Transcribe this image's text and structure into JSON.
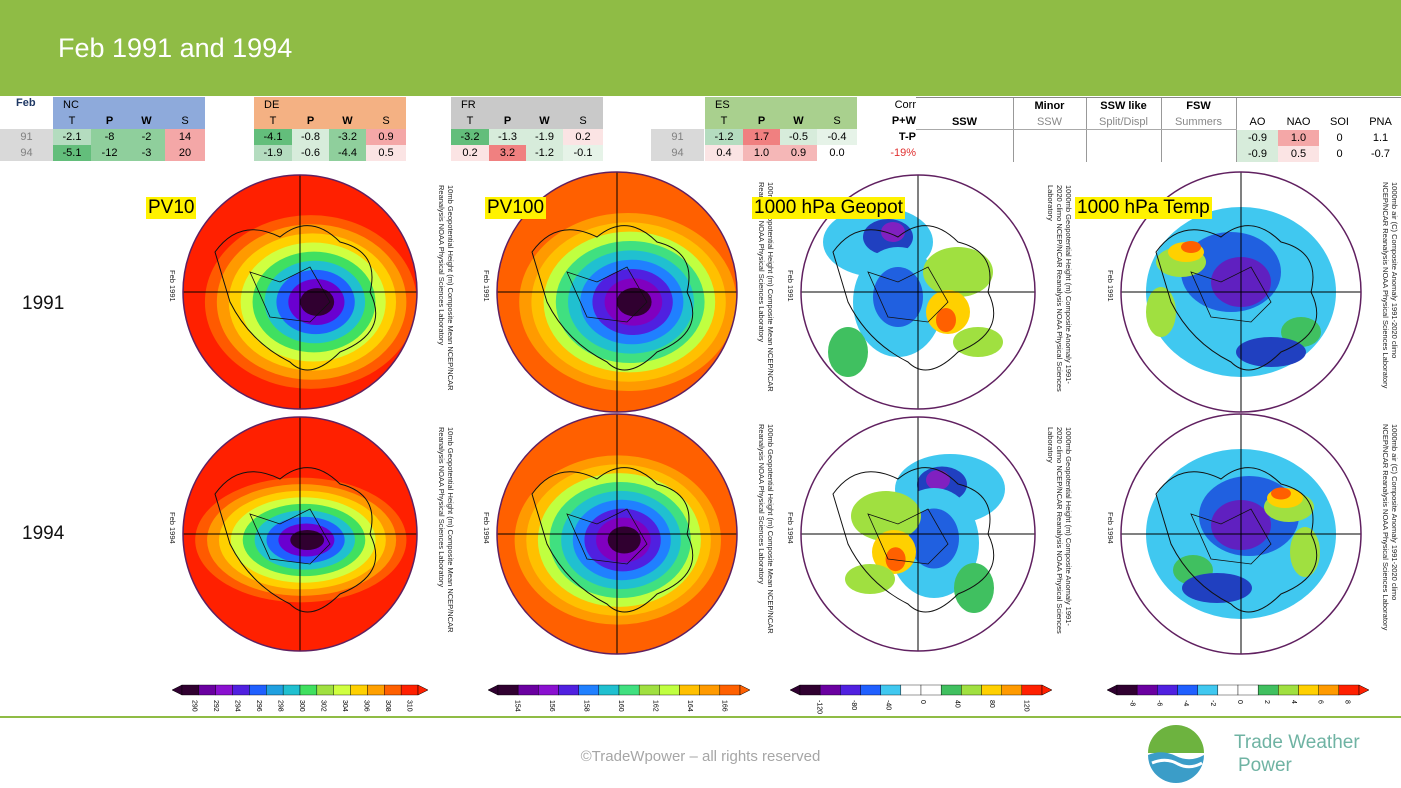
{
  "title": "Feb 1991 and 1994",
  "month_label": "Feb",
  "years": [
    "91",
    "94"
  ],
  "colors": {
    "accent": "#8fbc45",
    "nc": "#8eaadb",
    "de": "#f4b183",
    "fr": "#c9c9c9",
    "es": "#a9d08e",
    "warm": "#f08080",
    "cool": "#63be7b"
  },
  "regions": [
    {
      "name": "NC",
      "cols": [
        "T",
        "P",
        "W",
        "S"
      ],
      "rows": [
        [
          "-2.1",
          "-8",
          "-2",
          "14"
        ],
        [
          "-5.1",
          "-12",
          "-3",
          "20"
        ]
      ]
    },
    {
      "name": "DE",
      "cols": [
        "T",
        "P",
        "W",
        "S"
      ],
      "rows": [
        [
          "-4.1",
          "-0.8",
          "-3.2",
          "0.9"
        ],
        [
          "-1.9",
          "-0.6",
          "-4.4",
          "0.5"
        ]
      ]
    },
    {
      "name": "FR",
      "cols": [
        "T",
        "P",
        "W",
        "S"
      ],
      "rows": [
        [
          "-3.2",
          "-1.3",
          "-1.9",
          "0.2"
        ],
        [
          "0.2",
          "3.2",
          "-1.2",
          "-0.1"
        ]
      ]
    },
    {
      "name": "ES",
      "cols": [
        "T",
        "P",
        "W",
        "S"
      ],
      "rows": [
        [
          "-1.2",
          "1.7",
          "-0.5",
          "-0.4"
        ],
        [
          "0.4",
          "1.0",
          "0.9",
          "0.0"
        ]
      ]
    }
  ],
  "corr": {
    "l1": "Corr",
    "l2": "P+W",
    "l3": "T-P",
    "l4": "-19%"
  },
  "ssw": {
    "ssw": "SSW",
    "minor": "Minor",
    "minor_sub": "SSW",
    "like": "SSW like",
    "like_sub": "Split/Displ",
    "fsw": "FSW",
    "fsw_sub": "Summers"
  },
  "indices": {
    "headers": [
      "AO",
      "NAO",
      "SOI",
      "PNA"
    ],
    "rows": [
      [
        "-0.9",
        "1.0",
        "0",
        "1.1"
      ],
      [
        "-0.9",
        "0.5",
        "0",
        "-0.7"
      ]
    ]
  },
  "map_labels": [
    "PV10",
    "PV100",
    "1000 hPa Geopot",
    "1000 hPa Temp"
  ],
  "row_years": [
    "1991",
    "1994"
  ],
  "map_side_captions": {
    "pv10": "10mb Geopotential Height (m) Composite Mean",
    "pv100": "100mb Geopotential Height (m) Composite Mean",
    "geopot": "1000mb Geopotential Height (m) Composite Anomaly 1991-2020 climo",
    "temp": "1000mb air (C) Composite Anomaly 1991-2020 climo",
    "ncep": "NCEP/NCAR Reanalysis",
    "noaa": "NOAA Physical Sciences Laboratory",
    "feb1991": "Feb 1991",
    "feb1994": "Feb 1994"
  },
  "colorbars": [
    {
      "ticks": [
        "290",
        "292",
        "294",
        "296",
        "298",
        "300",
        "302",
        "304",
        "306",
        "308",
        "310"
      ]
    },
    {
      "ticks": [
        "154",
        "156",
        "158",
        "160",
        "162",
        "164",
        "166"
      ]
    },
    {
      "ticks": [
        "-120",
        "-80",
        "-40",
        "0",
        "40",
        "80",
        "120"
      ]
    },
    {
      "ticks": [
        "-8",
        "-6",
        "-4",
        "-2",
        "0",
        "2",
        "4",
        "6",
        "8"
      ]
    }
  ],
  "footer": {
    "copyright": "©TradeWpower – all rights reserved",
    "brand_line1": "Trade Weather",
    "brand_line2": "Power"
  }
}
